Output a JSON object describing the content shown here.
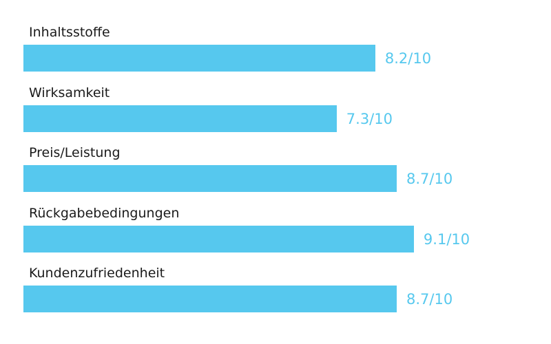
{
  "chart_data": {
    "type": "bar",
    "orientation": "horizontal",
    "categories": [
      "Inhaltsstoffe",
      "Wirksamkeit",
      "Preis/Leistung",
      "Rückgabebedingungen",
      "Kundenzufriedenheit"
    ],
    "values": [
      8.2,
      7.3,
      8.7,
      9.1,
      8.7
    ],
    "value_labels": [
      "8.2/10",
      "7.3/10",
      "8.7/10",
      "9.1/10",
      "8.7/10"
    ],
    "xlim": [
      0,
      10
    ],
    "title": "",
    "xlabel": "",
    "ylabel": "",
    "grid": false,
    "colors": {
      "bar": "#56c8ee",
      "value_text": "#56c8ee",
      "label_text": "#1a1a1a"
    }
  }
}
